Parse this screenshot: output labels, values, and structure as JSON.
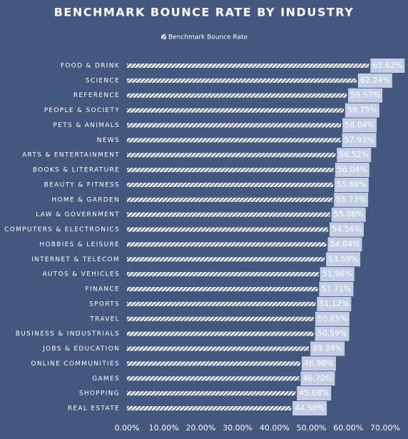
{
  "chart_data": {
    "type": "hbar",
    "title": "BENCHMARK BOUNCE RATE BY INDUSTRY",
    "categories": [
      "FOOD & DRINK",
      "SCIENCE",
      "REFERENCE",
      "PEOPLE & SOCIETY",
      "PETS & ANIMALS",
      "NEWS",
      "ARTS & ENTERTAINMENT",
      "BOOKS & LITERATURE",
      "BEAUTY & FITNESS",
      "HOME & GARDEN",
      "LAW & GOVERNMENT",
      "COMPUTERS & ELECTRONICS",
      "HOBBIES & LEISURE",
      "INTERNET & TELECOM",
      "AUTOS & VEHICLES",
      "FINANCE",
      "SPORTS",
      "TRAVEL",
      "BUSINESS & INDUSTRIALS",
      "JOBS & EDUCATION",
      "ONLINE COMMUNITIES",
      "GAMES",
      "SHOPPING",
      "REAL ESTATE"
    ],
    "series": [
      {
        "name": "Benchmark Bounce Rate",
        "color": "#ffffff",
        "values": [
          65.62,
          62.24,
          59.57,
          58.75,
          58.04,
          57.93,
          56.52,
          56.04,
          55.86,
          55.73,
          55.06,
          54.54,
          54.04,
          53.59,
          51.96,
          51.71,
          51.12,
          50.65,
          50.59,
          49.34,
          46.98,
          46.7,
          45.68,
          44.5
        ],
        "value_labels": [
          "65.62%",
          "62.24%",
          "59.57%",
          "58.75%",
          "58.04%",
          "57.93%",
          "56.52%",
          "56.04%",
          "55.86%",
          "55.73%",
          "55.06%",
          "54.54%",
          "54.04%",
          "53.59%",
          "51.96%",
          "51.71%",
          "51.12%",
          "50.65%",
          "50.59%",
          "49.34%",
          "46.98%",
          "46.70%",
          "45.68%",
          "44.50%"
        ]
      }
    ],
    "xlim": [
      0,
      70
    ],
    "xticks": [
      {
        "value": 0,
        "label": "0.00%"
      },
      {
        "value": 10,
        "label": "10.00%"
      },
      {
        "value": 20,
        "label": "20.00%"
      },
      {
        "value": 30,
        "label": "30.00%"
      },
      {
        "value": 40,
        "label": "40.00%"
      },
      {
        "value": 50,
        "label": "50.00%"
      },
      {
        "value": 60,
        "label": "60.00%"
      },
      {
        "value": 70,
        "label": "70.00%"
      }
    ],
    "grid": false
  }
}
